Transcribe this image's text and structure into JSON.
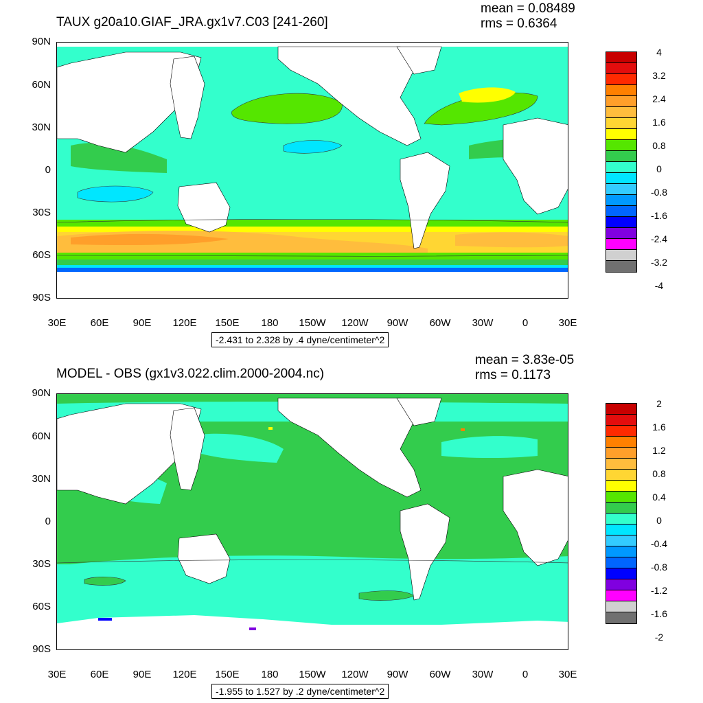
{
  "colors": {
    "levels": [
      "#c80000",
      "#e30d0d",
      "#ff2a00",
      "#ff8000",
      "#ff9f2a",
      "#ffbd3d",
      "#ffd633",
      "#ffff00",
      "#55e600",
      "#33cc4d",
      "#33ffcc",
      "#00e6ff",
      "#33ccff",
      "#0099ff",
      "#0066ff",
      "#0000ff",
      "#8000e0",
      "#ff00ff",
      "#d0d0d0",
      "#707070"
    ],
    "land": "#ffffff"
  },
  "panels": [
    {
      "title": "TAUX g20a10.GIAF_JRA.gx1v7.C03 [241-260]",
      "mean_label": "mean = 0.08489",
      "rms_label": "rms = 0.6364",
      "range_label": "-2.431 to 2.328 by .4 dyne/centimeter^2",
      "lat_ticks": [
        "90N",
        "60N",
        "30N",
        "0",
        "30S",
        "60S",
        "90S"
      ],
      "lon_ticks": [
        "30E",
        "60E",
        "90E",
        "120E",
        "150E",
        "180",
        "150W",
        "120W",
        "90W",
        "60W",
        "30W",
        "0",
        "30E"
      ],
      "colorbar_labels": [
        "4",
        "3.2",
        "2.4",
        "1.6",
        "0.8",
        "0",
        "-0.8",
        "-1.6",
        "-2.4",
        "-3.2",
        "-4"
      ]
    },
    {
      "title": "MODEL - OBS (gx1v3.022.clim.2000-2004.nc)",
      "mean_label": "mean = 3.83e-05",
      "rms_label": "rms = 0.1173",
      "range_label": "-1.955 to 1.527 by .2 dyne/centimeter^2",
      "lat_ticks": [
        "90N",
        "60N",
        "30N",
        "0",
        "30S",
        "60S",
        "90S"
      ],
      "lon_ticks": [
        "30E",
        "60E",
        "90E",
        "120E",
        "150E",
        "180",
        "150W",
        "120W",
        "90W",
        "60W",
        "30W",
        "0",
        "30E"
      ],
      "colorbar_labels": [
        "2",
        "1.6",
        "1.2",
        "0.8",
        "0.4",
        "0",
        "-0.4",
        "-0.8",
        "-1.2",
        "-1.6",
        "-2"
      ]
    }
  ]
}
